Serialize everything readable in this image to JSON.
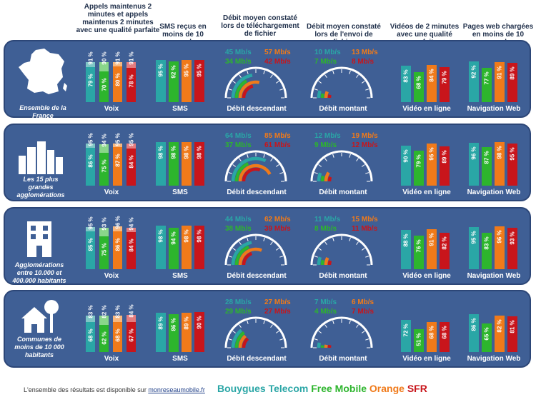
{
  "headers": {
    "voix": "Appels maintenus 2 minutes et appels maintenus 2 minutes avec une qualité parfaite",
    "sms": "SMS reçus en moins de 10 secondes",
    "debit_desc": "Débit moyen constaté lors de téléchargement de fichier",
    "debit_mont": "Débit moyen constaté lors de l'envoi de fichier",
    "video": "Vidéos de 2 minutes avec une qualité parfaite",
    "web": "Pages web chargées en moins de 10 secondes"
  },
  "operators": [
    {
      "name": "Bouygues Telecom",
      "color": "#2aa6a6"
    },
    {
      "name": "Free Mobile",
      "color": "#2db52d"
    },
    {
      "name": "Orange",
      "color": "#f07a1a"
    },
    {
      "name": "SFR",
      "color": "#c8151b"
    }
  ],
  "footer": {
    "text": "L'ensemble des résultats est disponible sur ",
    "link": "monreseaumobile.fr"
  },
  "chart_data": [
    {
      "type": "bar",
      "title": "Ensemble de la France",
      "categories": [
        "Bouygues Telecom",
        "Free Mobile",
        "Orange",
        "SFR"
      ],
      "voix": {
        "maintenus": [
          91,
          90,
          91,
          91
        ],
        "qualite_parfaite": [
          79,
          70,
          80,
          78
        ]
      },
      "sms": [
        95,
        92,
        95,
        95
      ],
      "debit_descendant": {
        "labels": [
          "45 Mb/s",
          "34 Mb/s",
          "57 Mb/s",
          "42 Mb/s"
        ],
        "values": [
          45,
          34,
          57,
          42
        ]
      },
      "debit_montant": {
        "labels": [
          "10 Mb/s",
          "7 Mb/s",
          "13 Mb/s",
          "8 Mb/s"
        ],
        "values": [
          10,
          7,
          13,
          8
        ]
      },
      "video": [
        83,
        68,
        84,
        79
      ],
      "web": [
        92,
        77,
        91,
        89
      ]
    },
    {
      "type": "bar",
      "title": "Les 15 plus grandes agglomérations",
      "categories": [
        "Bouygues Telecom",
        "Free Mobile",
        "Orange",
        "SFR"
      ],
      "voix": {
        "maintenus": [
          95,
          94,
          95,
          95
        ],
        "qualite_parfaite": [
          86,
          75,
          87,
          84
        ]
      },
      "sms": [
        98,
        98,
        98,
        98
      ],
      "debit_descendant": {
        "labels": [
          "64 Mb/s",
          "37 Mb/s",
          "85 Mb/s",
          "61 Mb/s"
        ],
        "values": [
          64,
          37,
          85,
          61
        ]
      },
      "debit_montant": {
        "labels": [
          "12 Mb/s",
          "9 Mb/s",
          "19 Mb/s",
          "12 Mb/s"
        ],
        "values": [
          12,
          9,
          19,
          12
        ]
      },
      "video": [
        90,
        79,
        95,
        89
      ],
      "web": [
        96,
        87,
        98,
        95
      ]
    },
    {
      "type": "bar",
      "title": "Agglomérations entre 10.000 et 400.000 habitants",
      "categories": [
        "Bouygues Telecom",
        "Free Mobile",
        "Orange",
        "SFR"
      ],
      "voix": {
        "maintenus": [
          95,
          93,
          96,
          94
        ],
        "qualite_parfaite": [
          85,
          75,
          86,
          84
        ]
      },
      "sms": [
        98,
        94,
        98,
        98
      ],
      "debit_descendant": {
        "labels": [
          "44 Mb/s",
          "38 Mb/s",
          "62 Mb/s",
          "39 Mb/s"
        ],
        "values": [
          44,
          38,
          62,
          39
        ]
      },
      "debit_montant": {
        "labels": [
          "11 Mb/s",
          "8 Mb/s",
          "15 Mb/s",
          "11 Mb/s"
        ],
        "values": [
          11,
          8,
          15,
          11
        ]
      },
      "video": [
        88,
        76,
        91,
        82
      ],
      "web": [
        95,
        83,
        96,
        93
      ]
    },
    {
      "type": "bar",
      "title": "Communes de moins de 10 000 habitants",
      "categories": [
        "Bouygues Telecom",
        "Free Mobile",
        "Orange",
        "SFR"
      ],
      "voix": {
        "maintenus": [
          83,
          82,
          83,
          84
        ],
        "qualite_parfaite": [
          68,
          62,
          68,
          67
        ]
      },
      "sms": [
        89,
        86,
        89,
        90
      ],
      "debit_descendant": {
        "labels": [
          "28 Mb/s",
          "29 Mb/s",
          "27 Mb/s",
          "27 Mb/s"
        ],
        "values": [
          28,
          29,
          27,
          27
        ]
      },
      "debit_montant": {
        "labels": [
          "7 Mb/s",
          "4 Mb/s",
          "6 Mb/s",
          "7 Mb/s"
        ],
        "values": [
          7,
          4,
          6,
          7
        ]
      },
      "video": [
        72,
        51,
        68,
        68
      ],
      "web": [
        86,
        65,
        82,
        81
      ]
    }
  ],
  "category_labels": {
    "voix": "Voix",
    "sms": "SMS",
    "debit_desc": "Débit descendant",
    "debit_mont": "Débit montant",
    "video": "Vidéo en ligne",
    "web": "Navigation Web"
  }
}
